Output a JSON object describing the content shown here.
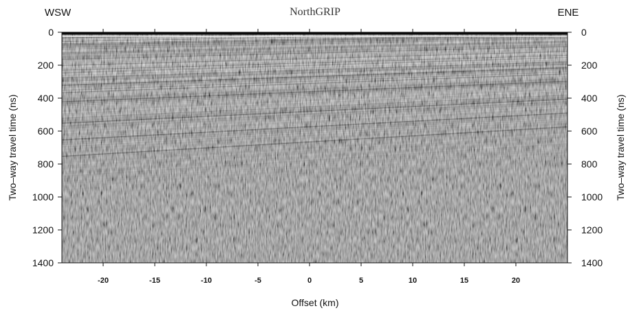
{
  "chart_data": {
    "type": "heatmap",
    "title": "NorthGRIP",
    "left_direction": "WSW",
    "right_direction": "ENE",
    "xlabel": "Offset (km)",
    "ylabel_left": "Two–way travel time (ns)",
    "ylabel_right": "Two–way travel time (ns)",
    "x_ticks": [
      "-20",
      "-15",
      "-10",
      "-5",
      "0",
      "5",
      "10",
      "15",
      "20"
    ],
    "x_tick_values": [
      -20,
      -15,
      -10,
      -5,
      0,
      5,
      10,
      15,
      20
    ],
    "y_ticks": [
      "0",
      "200",
      "400",
      "600",
      "800",
      "1000",
      "1200",
      "1400"
    ],
    "y_tick_values": [
      0,
      200,
      400,
      600,
      800,
      1000,
      1200,
      1400
    ],
    "xlim": [
      -24,
      25
    ],
    "ylim": [
      1400,
      0
    ],
    "colors": {
      "background": "#8a8a8a",
      "dark": "#262626",
      "light": "#d8d8d8"
    }
  }
}
